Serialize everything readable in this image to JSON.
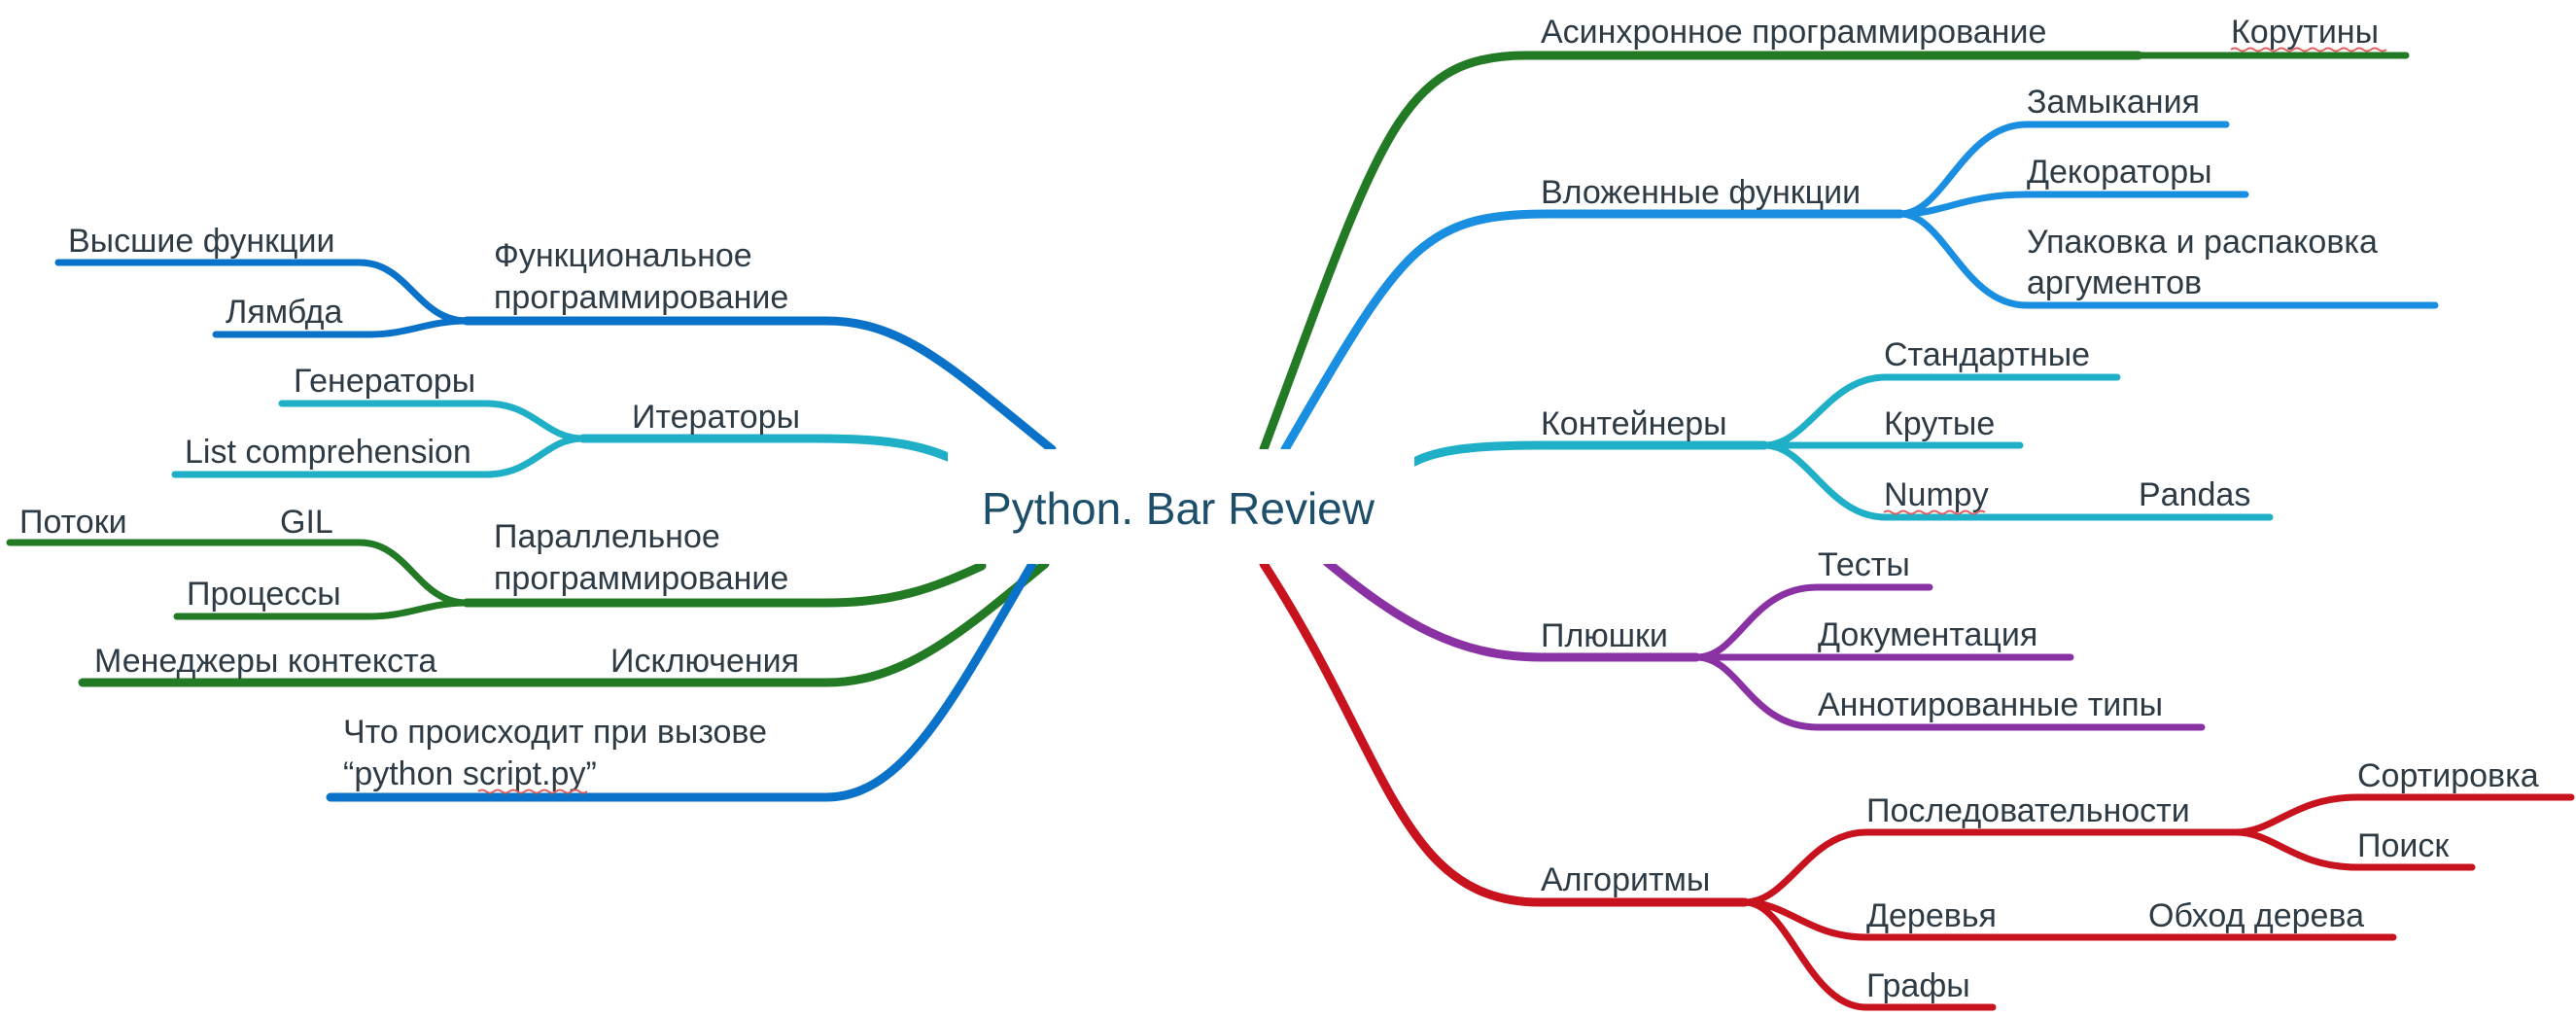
{
  "root": "Python. Bar Review",
  "colors": {
    "text": "#2e3a44",
    "root_text": "#1d4f6a",
    "blue": "#0a72c8",
    "teal": "#1fb0c8",
    "green": "#237a24",
    "purple": "#8a32a4",
    "red": "#c8121e",
    "lightblue": "#1a8ee0",
    "spellcheck": "#e06060"
  },
  "nodes": {
    "async": "Асинхронное программирование",
    "coroutines": "Корутины",
    "nested": "Вложенные функции",
    "closures": "Замыкания",
    "decorators": "Декораторы",
    "packing": [
      "Упаковка и распаковка",
      "аргументов"
    ],
    "containers": "Контейнеры",
    "standard": "Стандартные",
    "cool": "Крутые",
    "numpy": "Numpy",
    "pandas": "Pandas",
    "goodies": "Плюшки",
    "tests": "Тесты",
    "docs": "Документация",
    "annotated": "Аннотированные типы",
    "algorithms": "Алгоритмы",
    "sequences": "Последовательности",
    "sorting": "Сортировка",
    "search": "Поиск",
    "trees": "Деревья",
    "tree_traversal": "Обход дерева",
    "graphs": "Графы",
    "functional": [
      "Функциональное",
      "программирование"
    ],
    "higher_order": "Высшие функции",
    "lambda": "Лямбда",
    "iterators": "Итераторы",
    "generators": "Генераторы",
    "list_comp": "List comprehension",
    "parallel": [
      "Параллельное",
      "программирование"
    ],
    "gil": "GIL",
    "threads": "Потоки",
    "processes": "Процессы",
    "exceptions": "Исключения",
    "context_managers": "Менеджеры контекста",
    "script_call": [
      "Что происходит при вызове",
      "“python script.py”"
    ]
  }
}
